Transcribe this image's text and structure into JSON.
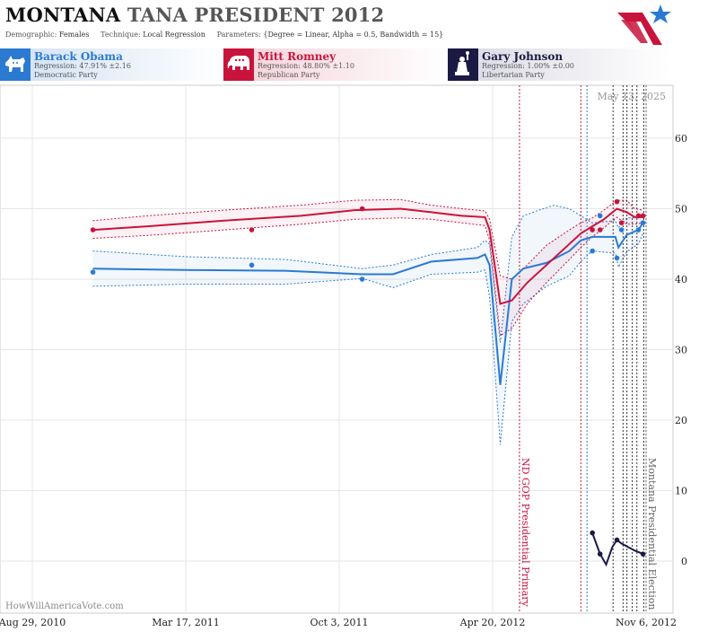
{
  "header": {
    "title_state": "MONTANA",
    "title_rest": "TANA PRESIDENT 2012",
    "demographic_label": "Demographic:",
    "demographic": "Females",
    "technique_label": "Technique:",
    "technique": "Local Regression",
    "parameters_label": "Parameters:",
    "parameters": "{Degree = Linear, Alpha = 0.5, Bandwidth = 15}"
  },
  "candidates": [
    {
      "name": "Barack Obama",
      "regression": "Regression: 47.91% ±2.16",
      "party": "Democratic Party",
      "color": "#2a7ad2",
      "icon": "donkey-icon"
    },
    {
      "name": "Mitt Romney",
      "regression": "Regression: 48.80% ±1.10",
      "party": "Republican Party",
      "color": "#c8143c",
      "icon": "elephant-icon"
    },
    {
      "name": "Gary Johnson",
      "regression": "Regression: 1.00% ±0.00",
      "party": "Libertarian Party",
      "color": "#1a1a44",
      "icon": "statue-of-liberty-icon"
    }
  ],
  "date_stamp": "May 13, 2025",
  "watermark": "HowWillAmericaVote.com",
  "chart_data": {
    "type": "line",
    "x_start": "2010-08-29",
    "x_end": "2012-11-06",
    "x_range": [
      0,
      800
    ],
    "ylim": [
      -10,
      70
    ],
    "y_ticks": [
      0,
      10,
      20,
      30,
      40,
      50,
      60
    ],
    "x_ticks": [
      {
        "label": "Aug 29, 2010",
        "x": 0
      },
      {
        "label": "Mar 17, 2011",
        "x": 200
      },
      {
        "label": "Oct 3, 2011",
        "x": 400
      },
      {
        "label": "Apr 20, 2012",
        "x": 600
      },
      {
        "label": "Nov 6, 2012",
        "x": 800
      }
    ],
    "events": [
      {
        "label": "ND GOP Presidential Primary",
        "x": 635,
        "color": "#c8143c"
      },
      {
        "label": "Montana Presidential Election",
        "x": 800,
        "color": "#666666"
      }
    ],
    "poll_lines": [
      {
        "x": 715,
        "color": "#c8143c"
      },
      {
        "x": 723,
        "color": "#2a7ad2"
      },
      {
        "x": 757,
        "color": "#333333"
      },
      {
        "x": 770,
        "color": "#333333"
      },
      {
        "x": 775,
        "color": "#333333"
      },
      {
        "x": 782,
        "color": "#333333"
      },
      {
        "x": 788,
        "color": "#333333"
      },
      {
        "x": 797,
        "color": "#333333"
      }
    ],
    "series": [
      {
        "name": "Barack Obama",
        "color": "#2a7ad2",
        "points": [
          [
            79,
            41
          ],
          [
            286,
            42
          ],
          [
            430,
            40
          ],
          [
            730,
            44
          ],
          [
            740,
            49
          ],
          [
            762,
            43
          ],
          [
            768,
            47
          ],
          [
            790,
            47
          ],
          [
            796,
            48
          ]
        ],
        "line": [
          [
            79,
            41.5
          ],
          [
            200,
            41.3
          ],
          [
            330,
            41.2
          ],
          [
            430,
            40.7
          ],
          [
            470,
            40.7
          ],
          [
            520,
            42.5
          ],
          [
            580,
            43
          ],
          [
            590,
            43.5
          ],
          [
            596,
            42
          ],
          [
            610,
            25
          ],
          [
            625,
            40
          ],
          [
            640,
            41.5
          ],
          [
            670,
            42.3
          ],
          [
            700,
            44
          ],
          [
            715,
            45.5
          ],
          [
            730,
            46
          ],
          [
            760,
            46
          ],
          [
            764,
            44.5
          ],
          [
            775,
            46.3
          ],
          [
            790,
            47
          ],
          [
            796,
            48
          ]
        ],
        "upper": [
          [
            79,
            44
          ],
          [
            200,
            43.2
          ],
          [
            330,
            42.8
          ],
          [
            430,
            41.5
          ],
          [
            470,
            42
          ],
          [
            520,
            43.5
          ],
          [
            580,
            44.5
          ],
          [
            590,
            45.5
          ],
          [
            596,
            45
          ],
          [
            610,
            31
          ],
          [
            625,
            46
          ],
          [
            640,
            49
          ],
          [
            660,
            49.8
          ],
          [
            680,
            50.5
          ],
          [
            700,
            50
          ],
          [
            715,
            49
          ],
          [
            730,
            48
          ],
          [
            760,
            48.3
          ],
          [
            764,
            47.3
          ],
          [
            775,
            48.7
          ],
          [
            790,
            48.8
          ],
          [
            796,
            49.3
          ]
        ],
        "lower": [
          [
            79,
            39
          ],
          [
            200,
            39.3
          ],
          [
            330,
            39.3
          ],
          [
            430,
            40.1
          ],
          [
            470,
            38.8
          ],
          [
            520,
            40.7
          ],
          [
            580,
            41
          ],
          [
            590,
            41.3
          ],
          [
            596,
            37.5
          ],
          [
            610,
            16.5
          ],
          [
            625,
            34
          ],
          [
            640,
            36.5
          ],
          [
            670,
            39
          ],
          [
            700,
            40.5
          ],
          [
            715,
            42.5
          ],
          [
            730,
            44
          ],
          [
            760,
            43.7
          ],
          [
            764,
            41.7
          ],
          [
            775,
            43.9
          ],
          [
            790,
            45
          ],
          [
            796,
            46.5
          ]
        ]
      },
      {
        "name": "Mitt Romney",
        "color": "#c8143c",
        "points": [
          [
            79,
            47
          ],
          [
            286,
            47
          ],
          [
            430,
            50
          ],
          [
            730,
            47
          ],
          [
            740,
            47
          ],
          [
            762,
            51
          ],
          [
            768,
            48
          ],
          [
            790,
            49
          ],
          [
            796,
            49
          ]
        ],
        "line": [
          [
            79,
            47
          ],
          [
            150,
            47.5
          ],
          [
            250,
            48.3
          ],
          [
            350,
            49
          ],
          [
            420,
            49.8
          ],
          [
            480,
            50
          ],
          [
            520,
            49.5
          ],
          [
            560,
            49
          ],
          [
            590,
            48.8
          ],
          [
            596,
            47
          ],
          [
            610,
            36.5
          ],
          [
            625,
            37
          ],
          [
            645,
            39.5
          ],
          [
            670,
            42
          ],
          [
            700,
            45
          ],
          [
            715,
            46.5
          ],
          [
            730,
            47.5
          ],
          [
            745,
            48.5
          ],
          [
            762,
            50
          ],
          [
            775,
            49.5
          ],
          [
            785,
            48.8
          ],
          [
            796,
            48.8
          ]
        ],
        "upper": [
          [
            79,
            48.3
          ],
          [
            150,
            49
          ],
          [
            250,
            49.8
          ],
          [
            350,
            50.5
          ],
          [
            420,
            51.2
          ],
          [
            480,
            51.3
          ],
          [
            520,
            50.5
          ],
          [
            560,
            50
          ],
          [
            590,
            49.7
          ],
          [
            596,
            48.5
          ],
          [
            610,
            40.5
          ],
          [
            625,
            40
          ],
          [
            645,
            42
          ],
          [
            670,
            44.8
          ],
          [
            700,
            47
          ],
          [
            715,
            48
          ],
          [
            730,
            48.7
          ],
          [
            745,
            49.8
          ],
          [
            762,
            51.2
          ],
          [
            775,
            51.2
          ],
          [
            785,
            50
          ],
          [
            796,
            49.8
          ]
        ],
        "lower": [
          [
            79,
            45.8
          ],
          [
            150,
            46.2
          ],
          [
            250,
            47
          ],
          [
            350,
            47.8
          ],
          [
            420,
            48.5
          ],
          [
            480,
            48.7
          ],
          [
            520,
            48.5
          ],
          [
            560,
            48
          ],
          [
            590,
            47.6
          ],
          [
            596,
            45.5
          ],
          [
            610,
            32
          ],
          [
            625,
            33
          ],
          [
            645,
            36.5
          ],
          [
            670,
            39.5
          ],
          [
            700,
            42.8
          ],
          [
            715,
            44.5
          ],
          [
            730,
            46
          ],
          [
            745,
            47.3
          ],
          [
            762,
            48.8
          ],
          [
            775,
            47.8
          ],
          [
            785,
            47.8
          ],
          [
            796,
            48
          ]
        ]
      },
      {
        "name": "Gary Johnson",
        "color": "#1a1a44",
        "points": [
          [
            730,
            4
          ],
          [
            740,
            1
          ],
          [
            762,
            3
          ],
          [
            796,
            1
          ]
        ],
        "line": [
          [
            730,
            4
          ],
          [
            740,
            1
          ],
          [
            748,
            -0.5
          ],
          [
            756,
            2
          ],
          [
            762,
            3
          ],
          [
            768,
            2.5
          ],
          [
            785,
            1.5
          ],
          [
            796,
            1
          ]
        ]
      }
    ]
  }
}
